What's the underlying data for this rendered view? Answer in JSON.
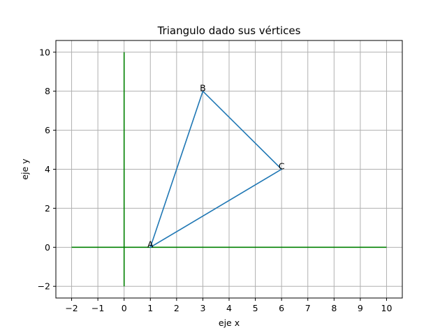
{
  "chart_data": {
    "type": "line",
    "title": "Triangulo dado sus vértices",
    "xlabel": "eje x",
    "ylabel": "eje y",
    "xlim": [
      -2.6,
      10.6
    ],
    "ylim": [
      -2.6,
      10.6
    ],
    "xticks": [
      -2,
      -1,
      0,
      1,
      2,
      3,
      4,
      5,
      6,
      7,
      8,
      9,
      10
    ],
    "yticks": [
      -2,
      0,
      2,
      4,
      6,
      8,
      10
    ],
    "xtick_labels": [
      "−2",
      "−1",
      "0",
      "1",
      "2",
      "3",
      "4",
      "5",
      "6",
      "7",
      "8",
      "9",
      "10"
    ],
    "ytick_labels": [
      "−2",
      "0",
      "2",
      "4",
      "6",
      "8",
      "10"
    ],
    "grid": true,
    "series": [
      {
        "x": [
          1,
          3,
          6,
          1
        ],
        "y": [
          0,
          8,
          4,
          0
        ],
        "color": "#1f77b4"
      }
    ],
    "points": [
      {
        "label": "A",
        "x": 1,
        "y": 0
      },
      {
        "label": "B",
        "x": 3,
        "y": 8
      },
      {
        "label": "C",
        "x": 6,
        "y": 4
      }
    ],
    "reference_lines": [
      {
        "orientation": "horizontal",
        "value": 0,
        "from": -2,
        "to": 10,
        "color": "#008000"
      },
      {
        "orientation": "vertical",
        "value": 0,
        "from": -2,
        "to": 10,
        "color": "#008000"
      }
    ],
    "grid_color": "#b0b0b0"
  }
}
